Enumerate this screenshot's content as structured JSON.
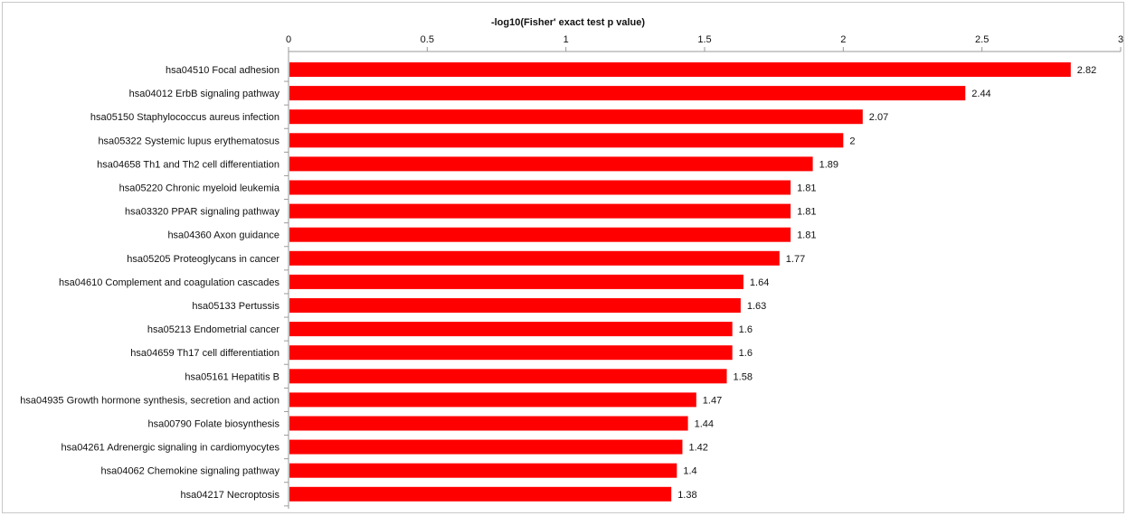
{
  "chart_data": {
    "type": "bar",
    "orientation": "horizontal",
    "title": "-log10(Fisher' exact test p value)",
    "x_axis_position": "top",
    "xlim": [
      0,
      3
    ],
    "xticks": [
      0,
      0.5,
      1,
      1.5,
      2,
      2.5,
      3
    ],
    "xtick_labels": [
      "0",
      "0.5",
      "1",
      "1.5",
      "2",
      "2.5",
      "3"
    ],
    "grid": false,
    "legend": "none",
    "bar_color": "#ff0000",
    "categories": [
      "hsa04510 Focal adhesion",
      "hsa04012 ErbB signaling pathway",
      "hsa05150 Staphylococcus aureus infection",
      "hsa05322 Systemic lupus erythematosus",
      "hsa04658 Th1 and Th2 cell differentiation",
      "hsa05220 Chronic myeloid leukemia",
      "hsa03320 PPAR signaling pathway",
      "hsa04360 Axon guidance",
      "hsa05205 Proteoglycans in cancer",
      "hsa04610 Complement and coagulation cascades",
      "hsa05133 Pertussis",
      "hsa05213 Endometrial cancer",
      "hsa04659 Th17 cell differentiation",
      "hsa05161 Hepatitis B",
      "hsa04935 Growth hormone synthesis, secretion and action",
      "hsa00790 Folate biosynthesis",
      "hsa04261 Adrenergic signaling in cardiomyocytes",
      "hsa04062 Chemokine signaling pathway",
      "hsa04217 Necroptosis"
    ],
    "values": [
      2.82,
      2.44,
      2.07,
      2,
      1.89,
      1.81,
      1.81,
      1.81,
      1.77,
      1.64,
      1.63,
      1.6,
      1.6,
      1.58,
      1.47,
      1.44,
      1.42,
      1.4,
      1.38
    ],
    "value_labels": [
      "2.82",
      "2.44",
      "2.07",
      "2",
      "1.89",
      "1.81",
      "1.81",
      "1.81",
      "1.77",
      "1.64",
      "1.63",
      "1.6",
      "1.6",
      "1.58",
      "1.47",
      "1.44",
      "1.42",
      "1.4",
      "1.38"
    ]
  }
}
